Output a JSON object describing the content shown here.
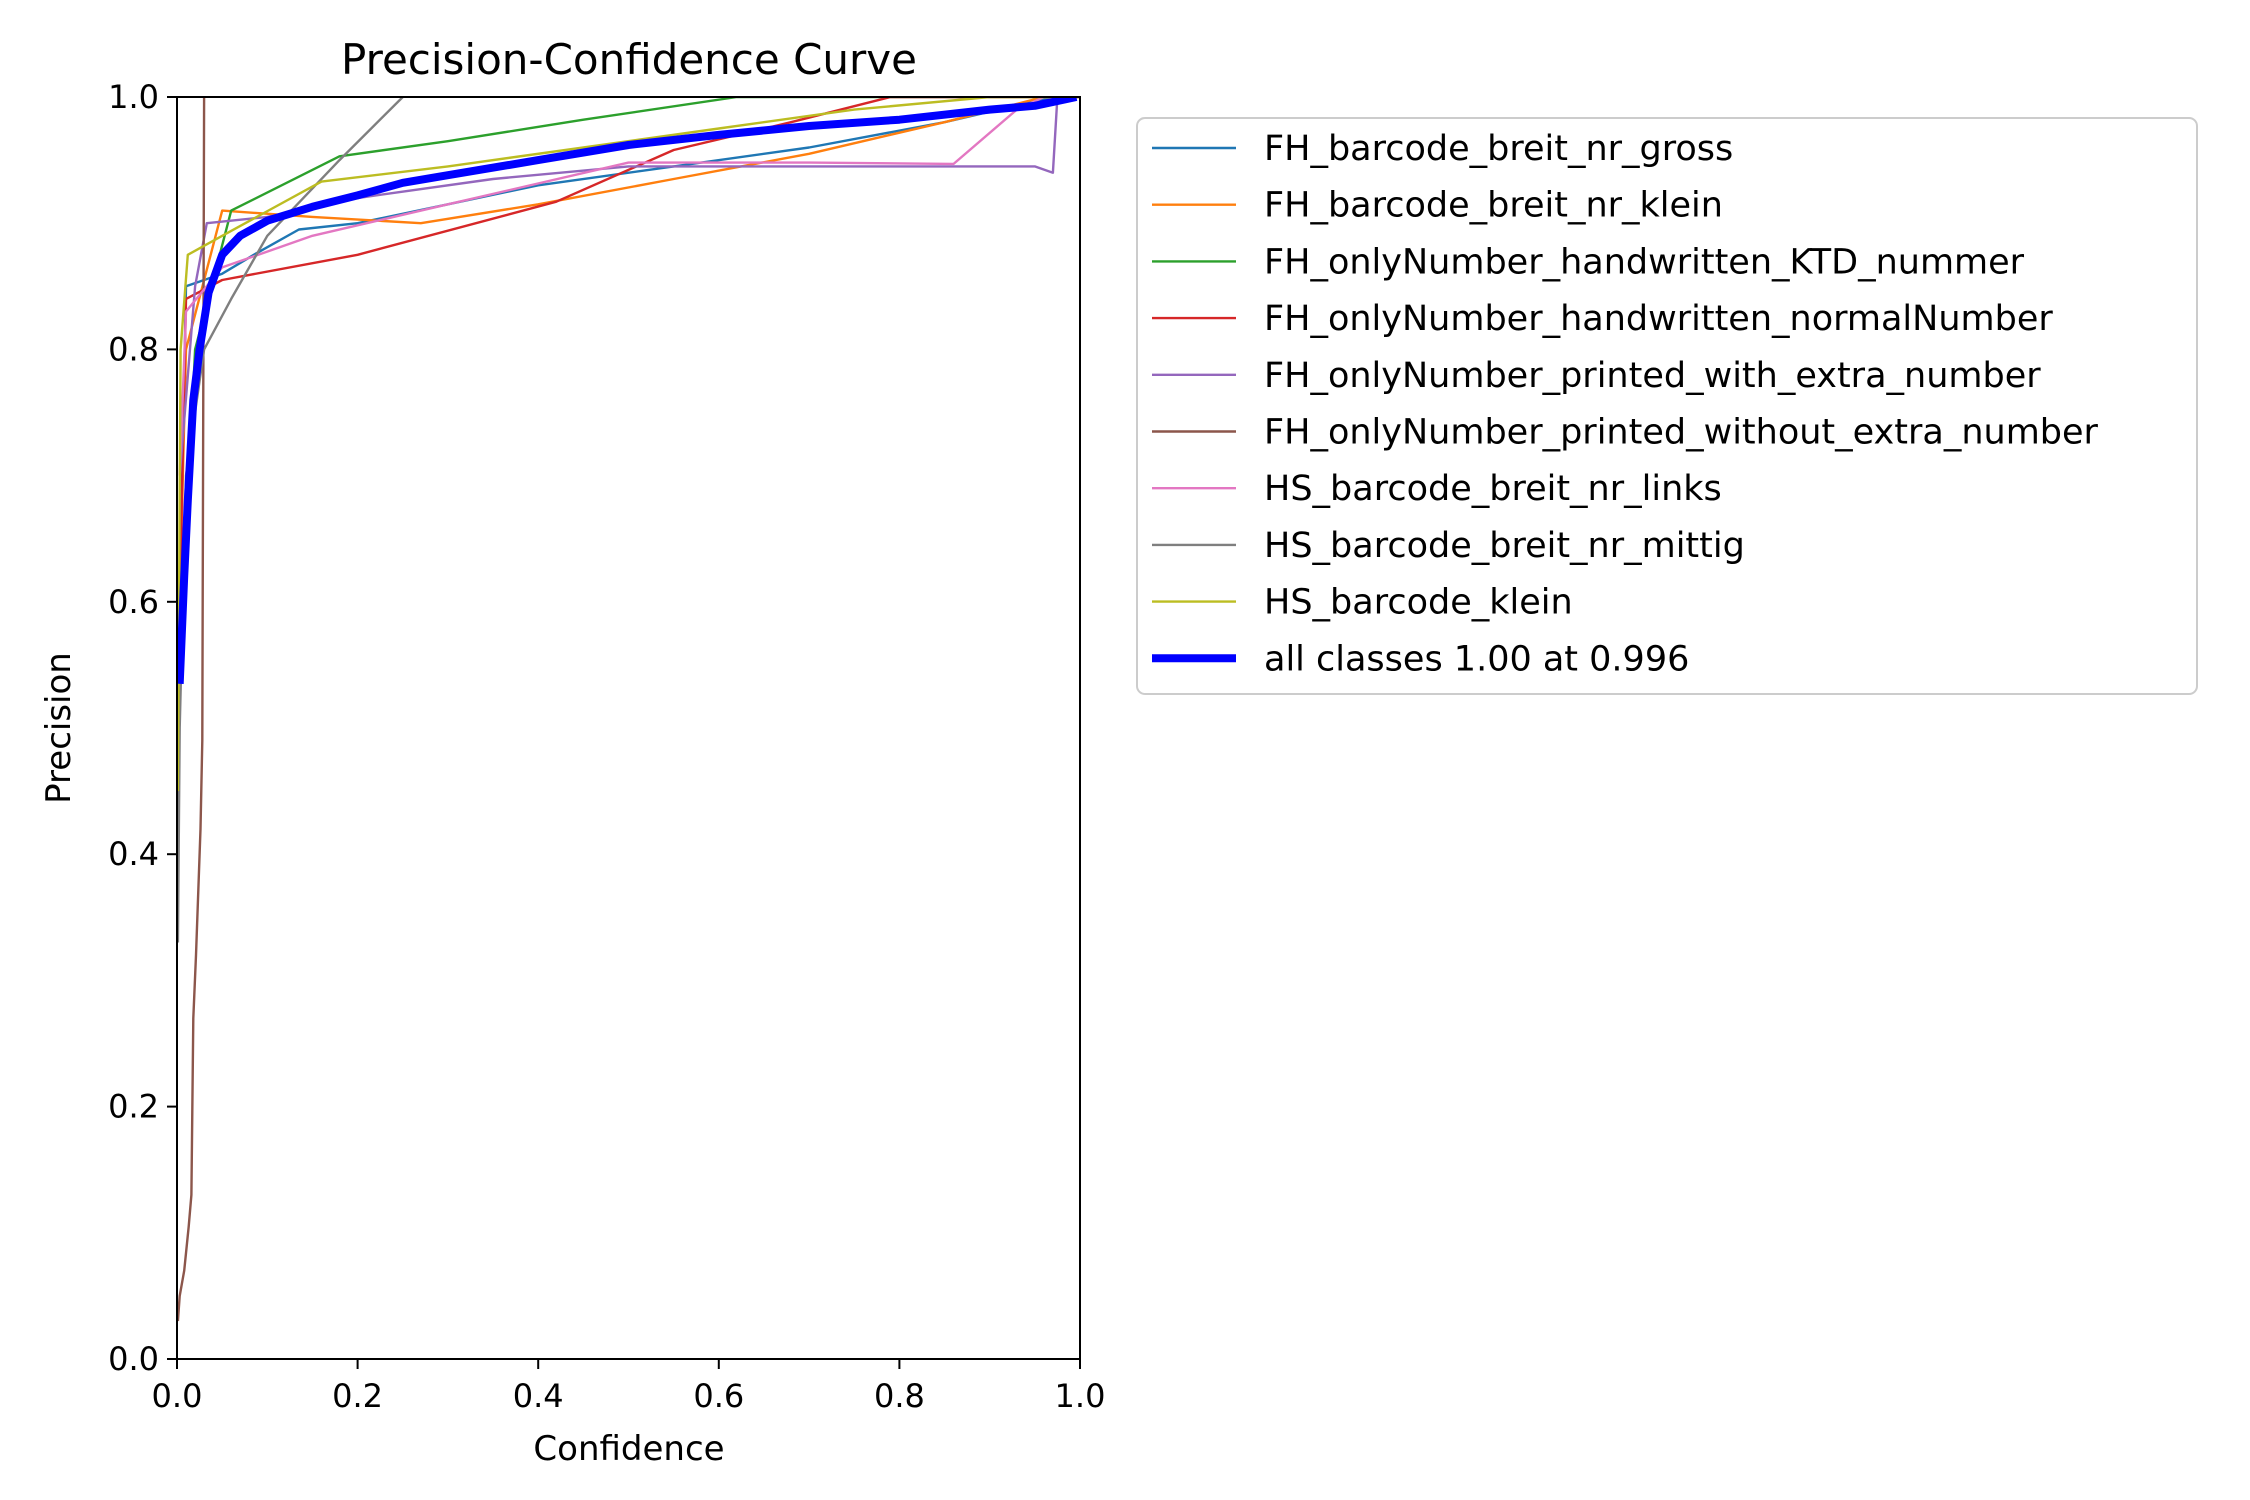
{
  "chart_data": {
    "type": "line",
    "title": "Precision-Confidence Curve",
    "xlabel": "Confidence",
    "ylabel": "Precision",
    "xlim": [
      0.0,
      1.0
    ],
    "ylim": [
      0.0,
      1.0
    ],
    "xticks": [
      "0.0",
      "0.2",
      "0.4",
      "0.6",
      "0.8",
      "1.0"
    ],
    "yticks": [
      "0.0",
      "0.2",
      "0.4",
      "0.6",
      "0.8",
      "1.0"
    ],
    "grid": false,
    "legend_position": "outside-top-right",
    "series": [
      {
        "name": "FH_barcode_breit_nr_gross",
        "color": "#1f77b4",
        "width": "thin",
        "points": [
          [
            0.003,
            0.6
          ],
          [
            0.01,
            0.85
          ],
          [
            0.05,
            0.86
          ],
          [
            0.085,
            0.875
          ],
          [
            0.135,
            0.895
          ],
          [
            0.2,
            0.9
          ],
          [
            0.3,
            0.915
          ],
          [
            0.4,
            0.93
          ],
          [
            0.55,
            0.945
          ],
          [
            0.7,
            0.96
          ],
          [
            0.85,
            0.98
          ],
          [
            0.97,
            1.0
          ],
          [
            1.0,
            1.0
          ]
        ]
      },
      {
        "name": "FH_barcode_breit_nr_klein",
        "color": "#ff7f0e",
        "width": "thin",
        "points": [
          [
            0.003,
            0.6
          ],
          [
            0.01,
            0.8
          ],
          [
            0.05,
            0.91
          ],
          [
            0.15,
            0.905
          ],
          [
            0.27,
            0.9
          ],
          [
            0.4,
            0.915
          ],
          [
            0.55,
            0.935
          ],
          [
            0.7,
            0.955
          ],
          [
            0.85,
            0.98
          ],
          [
            0.96,
            1.0
          ],
          [
            1.0,
            1.0
          ]
        ]
      },
      {
        "name": "FH_onlyNumber_handwritten_KTD_nummer",
        "color": "#2ca02c",
        "width": "thin",
        "points": [
          [
            0.003,
            0.55
          ],
          [
            0.02,
            0.8
          ],
          [
            0.06,
            0.91
          ],
          [
            0.18,
            0.953
          ],
          [
            0.3,
            0.965
          ],
          [
            0.45,
            0.982
          ],
          [
            0.62,
            1.0
          ],
          [
            1.0,
            1.0
          ]
        ]
      },
      {
        "name": "FH_onlyNumber_handwritten_normalNumber",
        "color": "#d62728",
        "width": "thin",
        "points": [
          [
            0.003,
            0.6
          ],
          [
            0.01,
            0.84
          ],
          [
            0.05,
            0.855
          ],
          [
            0.2,
            0.875
          ],
          [
            0.42,
            0.917
          ],
          [
            0.55,
            0.958
          ],
          [
            0.68,
            0.98
          ],
          [
            0.79,
            1.0
          ],
          [
            1.0,
            1.0
          ]
        ]
      },
      {
        "name": "FH_onlyNumber_printed_with_extra_number",
        "color": "#9467bd",
        "width": "thin",
        "points": [
          [
            0.003,
            0.7
          ],
          [
            0.02,
            0.85
          ],
          [
            0.033,
            0.9
          ],
          [
            0.1,
            0.905
          ],
          [
            0.2,
            0.92
          ],
          [
            0.35,
            0.935
          ],
          [
            0.5,
            0.945
          ],
          [
            0.7,
            0.945
          ],
          [
            0.95,
            0.945
          ],
          [
            0.97,
            0.94
          ],
          [
            0.975,
            1.0
          ],
          [
            1.0,
            1.0
          ]
        ]
      },
      {
        "name": "FH_onlyNumber_printed_without_extra_number",
        "color": "#8c564b",
        "width": "thin",
        "points": [
          [
            0.001,
            0.03
          ],
          [
            0.003,
            0.05
          ],
          [
            0.008,
            0.07
          ],
          [
            0.013,
            0.105
          ],
          [
            0.016,
            0.13
          ],
          [
            0.018,
            0.27
          ],
          [
            0.021,
            0.32
          ],
          [
            0.026,
            0.42
          ],
          [
            0.028,
            0.49
          ],
          [
            0.03,
            1.0
          ]
        ]
      },
      {
        "name": "HS_barcode_breit_nr_links",
        "color": "#e377c2",
        "width": "thin",
        "points": [
          [
            0.003,
            0.7
          ],
          [
            0.01,
            0.83
          ],
          [
            0.05,
            0.865
          ],
          [
            0.15,
            0.89
          ],
          [
            0.3,
            0.915
          ],
          [
            0.5,
            0.948
          ],
          [
            0.7,
            0.948
          ],
          [
            0.86,
            0.947
          ],
          [
            0.93,
            0.99
          ],
          [
            0.96,
            1.0
          ],
          [
            1.0,
            1.0
          ]
        ]
      },
      {
        "name": "HS_barcode_breit_nr_mittig",
        "color": "#7f7f7f",
        "width": "thin",
        "points": [
          [
            0.001,
            0.33
          ],
          [
            0.003,
            0.5
          ],
          [
            0.01,
            0.7
          ],
          [
            0.03,
            0.8
          ],
          [
            0.06,
            0.84
          ],
          [
            0.1,
            0.89
          ],
          [
            0.18,
            0.95
          ],
          [
            0.25,
            1.0
          ]
        ]
      },
      {
        "name": "HS_barcode_klein",
        "color": "#bcbd22",
        "width": "thin",
        "points": [
          [
            0.001,
            0.45
          ],
          [
            0.004,
            0.8
          ],
          [
            0.012,
            0.875
          ],
          [
            0.05,
            0.89
          ],
          [
            0.16,
            0.933
          ],
          [
            0.3,
            0.945
          ],
          [
            0.45,
            0.96
          ],
          [
            0.6,
            0.975
          ],
          [
            0.75,
            0.99
          ],
          [
            0.9,
            1.0
          ],
          [
            1.0,
            1.0
          ]
        ]
      },
      {
        "name": "all classes 1.00 at 0.996",
        "color": "#0000ff",
        "width": "thick",
        "points": [
          [
            0.003,
            0.535
          ],
          [
            0.008,
            0.62
          ],
          [
            0.012,
            0.68
          ],
          [
            0.018,
            0.76
          ],
          [
            0.025,
            0.8
          ],
          [
            0.035,
            0.845
          ],
          [
            0.05,
            0.875
          ],
          [
            0.07,
            0.89
          ],
          [
            0.1,
            0.902
          ],
          [
            0.15,
            0.913
          ],
          [
            0.2,
            0.922
          ],
          [
            0.25,
            0.932
          ],
          [
            0.3,
            0.938
          ],
          [
            0.4,
            0.95
          ],
          [
            0.5,
            0.962
          ],
          [
            0.6,
            0.97
          ],
          [
            0.7,
            0.977
          ],
          [
            0.8,
            0.982
          ],
          [
            0.9,
            0.99
          ],
          [
            0.95,
            0.993
          ],
          [
            0.996,
            1.0
          ]
        ]
      }
    ]
  }
}
